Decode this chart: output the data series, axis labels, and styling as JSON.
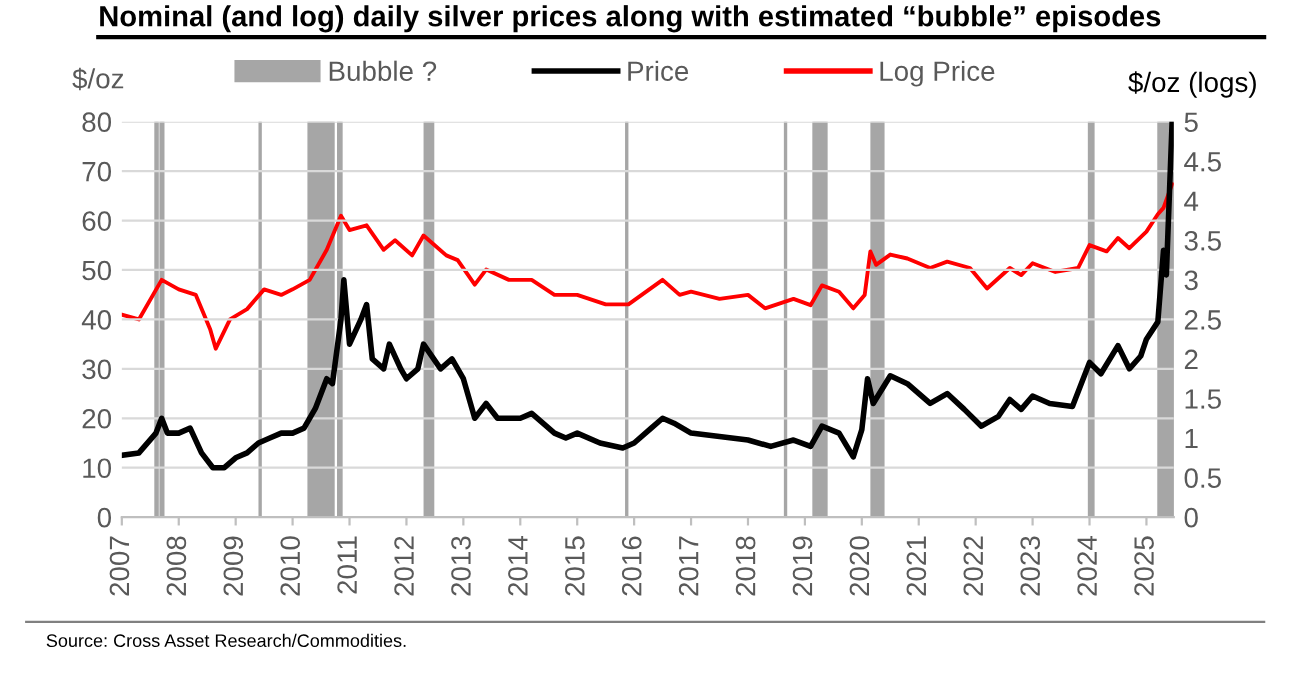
{
  "chart_data": {
    "type": "line",
    "title": "Nominal (and log) daily silver prices along with estimated “bubble” episodes",
    "ylabel": "$/oz",
    "y2label": "$/oz (logs)",
    "annotations": [
      "Source: Cross Asset Research/Commodities."
    ],
    "xlim": [
      2007,
      2025.48
    ],
    "xticks": [
      2007,
      2008,
      2009,
      2010,
      2011,
      2012,
      2013,
      2014,
      2015,
      2016,
      2017,
      2018,
      2019,
      2020,
      2021,
      2022,
      2023,
      2024,
      2025
    ],
    "ylim": [
      0,
      80
    ],
    "yticks": [
      0,
      10,
      20,
      30,
      40,
      50,
      60,
      70,
      80
    ],
    "y2lim": [
      0,
      5
    ],
    "y2ticks": [
      0,
      0.5,
      1,
      1.5,
      2,
      2.5,
      3,
      3.5,
      4,
      4.5,
      5
    ],
    "grid": "y",
    "legend": "top",
    "line_style": "solid",
    "marker": "none",
    "bands": [
      {
        "axis": "x",
        "from": 2007.59,
        "to": 2007.63,
        "label": "Bubble ?",
        "color": "#a6a6a6"
      },
      {
        "axis": "x",
        "from": 2007.68,
        "to": 2007.73,
        "color": "#a6a6a6"
      },
      {
        "axis": "x",
        "from": 2009.42,
        "to": 2009.44,
        "color": "#a6a6a6"
      },
      {
        "axis": "x",
        "from": 2010.28,
        "to": 2010.72,
        "color": "#a6a6a6"
      },
      {
        "axis": "x",
        "from": 2010.8,
        "to": 2010.86,
        "color": "#a6a6a6"
      },
      {
        "axis": "x",
        "from": 2012.32,
        "to": 2012.47,
        "color": "#a6a6a6"
      },
      {
        "axis": "x",
        "from": 2015.86,
        "to": 2015.88,
        "color": "#a6a6a6"
      },
      {
        "axis": "x",
        "from": 2018.65,
        "to": 2018.67,
        "color": "#a6a6a6"
      },
      {
        "axis": "x",
        "from": 2019.15,
        "to": 2019.38,
        "color": "#a6a6a6"
      },
      {
        "axis": "x",
        "from": 2020.17,
        "to": 2020.38,
        "color": "#a6a6a6"
      },
      {
        "axis": "x",
        "from": 2023.99,
        "to": 2024.07,
        "color": "#a6a6a6"
      },
      {
        "axis": "x",
        "from": 2025.21,
        "to": 2025.48,
        "color": "#a6a6a6"
      }
    ],
    "series": [
      {
        "name": "Price",
        "color": "#000000",
        "x": [
          2007.0,
          2007.3,
          2007.6,
          2007.7,
          2007.8,
          2008.0,
          2008.2,
          2008.4,
          2008.6,
          2008.8,
          2009.0,
          2009.2,
          2009.4,
          2009.6,
          2009.8,
          2010.0,
          2010.2,
          2010.4,
          2010.6,
          2010.7,
          2010.85,
          2010.9,
          2011.0,
          2011.2,
          2011.3,
          2011.4,
          2011.6,
          2011.7,
          2011.9,
          2012.0,
          2012.2,
          2012.3,
          2012.6,
          2012.8,
          2013.0,
          2013.2,
          2013.4,
          2013.6,
          2014.0,
          2014.2,
          2014.6,
          2014.8,
          2015.0,
          2015.4,
          2015.8,
          2016.0,
          2016.3,
          2016.5,
          2016.7,
          2017.0,
          2017.5,
          2018.0,
          2018.4,
          2018.8,
          2019.1,
          2019.3,
          2019.6,
          2019.85,
          2020.0,
          2020.1,
          2020.2,
          2020.5,
          2020.8,
          2021.2,
          2021.5,
          2021.8,
          2022.1,
          2022.4,
          2022.6,
          2022.8,
          2023.0,
          2023.3,
          2023.7,
          2024.0,
          2024.2,
          2024.5,
          2024.7,
          2024.9,
          2025.0,
          2025.2,
          2025.3,
          2025.35,
          2025.45
        ],
        "values": [
          12.5,
          13,
          17,
          20,
          17,
          17,
          18,
          13,
          10,
          10,
          12,
          13,
          15,
          16,
          17,
          17,
          18,
          22,
          28,
          27,
          40,
          48,
          35,
          40,
          43,
          32,
          30,
          35,
          30,
          28,
          30,
          35,
          30,
          32,
          28,
          20,
          23,
          20,
          20,
          21,
          17,
          16,
          17,
          15,
          14,
          15,
          18,
          20,
          19,
          17,
          16.3,
          15.6,
          14.3,
          15.6,
          14.3,
          18.4,
          17,
          12.2,
          17.7,
          28,
          23,
          28.6,
          27,
          23,
          25,
          21.8,
          18.4,
          20.4,
          23.8,
          21.8,
          24.5,
          23,
          22.4,
          31.3,
          29,
          34.7,
          30,
          32.6,
          36,
          39.5,
          54,
          49,
          79.6
        ]
      },
      {
        "name": "Log Price",
        "color": "#ff0000",
        "axis": "y2",
        "x": [
          2007.0,
          2007.3,
          2007.7,
          2008.0,
          2008.3,
          2008.55,
          2008.65,
          2008.9,
          2009.2,
          2009.5,
          2009.8,
          2010.0,
          2010.3,
          2010.6,
          2010.85,
          2011.0,
          2011.3,
          2011.6,
          2011.8,
          2012.1,
          2012.3,
          2012.7,
          2012.9,
          2013.2,
          2013.4,
          2013.8,
          2014.2,
          2014.6,
          2015.0,
          2015.5,
          2015.9,
          2016.5,
          2016.8,
          2017.0,
          2017.5,
          2018.0,
          2018.3,
          2018.8,
          2019.1,
          2019.3,
          2019.6,
          2019.85,
          2020.05,
          2020.15,
          2020.25,
          2020.5,
          2020.8,
          2021.2,
          2021.5,
          2021.9,
          2022.2,
          2022.6,
          2022.8,
          2023.0,
          2023.4,
          2023.8,
          2024.0,
          2024.3,
          2024.5,
          2024.7,
          2025.0,
          2025.2,
          2025.3,
          2025.45
        ],
        "values": [
          2.56,
          2.5,
          3.0,
          2.88,
          2.81,
          2.38,
          2.13,
          2.5,
          2.63,
          2.88,
          2.81,
          2.88,
          3.0,
          3.38,
          3.81,
          3.63,
          3.69,
          3.38,
          3.5,
          3.31,
          3.56,
          3.31,
          3.25,
          2.94,
          3.13,
          3.0,
          3.0,
          2.81,
          2.81,
          2.69,
          2.69,
          3.0,
          2.81,
          2.85,
          2.76,
          2.81,
          2.64,
          2.76,
          2.68,
          2.93,
          2.85,
          2.64,
          2.81,
          3.36,
          3.19,
          3.32,
          3.27,
          3.15,
          3.23,
          3.15,
          2.89,
          3.15,
          3.06,
          3.21,
          3.1,
          3.15,
          3.44,
          3.36,
          3.53,
          3.4,
          3.61,
          3.83,
          3.91,
          4.21
        ]
      }
    ]
  }
}
